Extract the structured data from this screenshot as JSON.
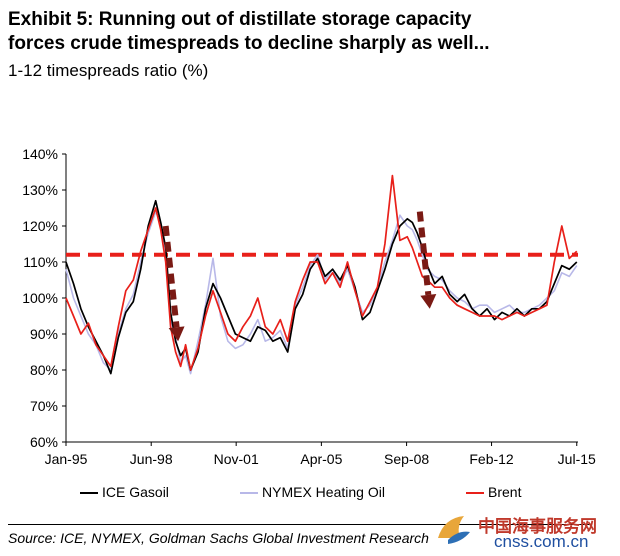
{
  "header": {
    "title_line1": "Exhibit 5: Running out of distillate storage capacity",
    "title_line2": "forces crude timespreads to decline sharply as well...",
    "subtitle": "1-12 timespreads ratio  (%)"
  },
  "source": "Source: ICE, NYMEX, Goldman Sachs Global Investment Research",
  "watermark": {
    "cn": "中国海事服务网",
    "en": "cnss.com.cn"
  },
  "colors": {
    "ice": "#000000",
    "nymex": "#b8b8e8",
    "brent": "#e8201a",
    "reference": "#e8201a",
    "arrow": "#7a1a14"
  },
  "chart_data": {
    "type": "line",
    "title": "Exhibit 5: Running out of distillate storage capacity forces crude timespreads to decline sharply as well...",
    "ylabel": "1-12 timespreads ratio (%)",
    "ylim": [
      60,
      140
    ],
    "yticks": [
      "60%",
      "70%",
      "80%",
      "90%",
      "100%",
      "110%",
      "120%",
      "130%",
      "140%"
    ],
    "yticks_values": [
      60,
      70,
      80,
      90,
      100,
      110,
      120,
      130,
      140
    ],
    "xlim": [
      1995.0,
      2015.55
    ],
    "xticks": [
      "Jan-95",
      "Jun-98",
      "Nov-01",
      "Apr-05",
      "Sep-08",
      "Feb-12",
      "Jul-15"
    ],
    "xticks_values": [
      1995.0,
      1998.42,
      2001.83,
      2005.25,
      2008.67,
      2012.08,
      2015.5
    ],
    "reference_line": {
      "y": 112,
      "style": "dashed"
    },
    "legend": [
      "ICE Gasoil",
      "NYMEX Heating Oil",
      "Brent"
    ],
    "legend_position": "bottom",
    "grid": false,
    "series": [
      {
        "name": "ICE Gasoil",
        "x": [
          1995.0,
          1995.3,
          1995.6,
          1995.9,
          1996.2,
          1996.5,
          1996.8,
          1997.1,
          1997.4,
          1997.7,
          1998.0,
          1998.3,
          1998.6,
          1998.8,
          1999.0,
          1999.2,
          1999.4,
          1999.6,
          1999.8,
          2000.0,
          2000.3,
          2000.6,
          2000.9,
          2001.2,
          2001.5,
          2001.8,
          2002.1,
          2002.4,
          2002.7,
          2003.0,
          2003.3,
          2003.6,
          2003.9,
          2004.2,
          2004.5,
          2004.8,
          2005.1,
          2005.4,
          2005.7,
          2006.0,
          2006.3,
          2006.6,
          2006.9,
          2007.2,
          2007.5,
          2007.8,
          2008.1,
          2008.4,
          2008.7,
          2008.9,
          2009.1,
          2009.3,
          2009.5,
          2009.8,
          2010.1,
          2010.4,
          2010.7,
          2011.0,
          2011.3,
          2011.6,
          2011.9,
          2012.2,
          2012.5,
          2012.8,
          2013.1,
          2013.4,
          2013.7,
          2014.0,
          2014.3,
          2014.6,
          2014.9,
          2015.2,
          2015.5
        ],
        "values": [
          110,
          104,
          97,
          92,
          88,
          84,
          79,
          89,
          96,
          99,
          108,
          120,
          127,
          121,
          114,
          96,
          88,
          84,
          86,
          80,
          85,
          97,
          104,
          100,
          95,
          90,
          89,
          88,
          92,
          91,
          88,
          89,
          85,
          97,
          101,
          108,
          111,
          106,
          108,
          105,
          109,
          103,
          94,
          96,
          102,
          108,
          115,
          120,
          122,
          121,
          118,
          114,
          109,
          104,
          106,
          101,
          99,
          101,
          97,
          95,
          97,
          94,
          96,
          95,
          97,
          95,
          97,
          97,
          99,
          104,
          109,
          108,
          110
        ]
      },
      {
        "name": "NYMEX Heating Oil",
        "x": [
          1995.0,
          1995.3,
          1995.6,
          1995.9,
          1996.2,
          1996.5,
          1996.8,
          1997.1,
          1997.4,
          1997.7,
          1998.0,
          1998.3,
          1998.6,
          1998.8,
          1999.0,
          1999.2,
          1999.4,
          1999.6,
          1999.8,
          2000.0,
          2000.3,
          2000.6,
          2000.9,
          2001.2,
          2001.5,
          2001.8,
          2002.1,
          2002.4,
          2002.7,
          2003.0,
          2003.3,
          2003.6,
          2003.9,
          2004.2,
          2004.5,
          2004.8,
          2005.1,
          2005.4,
          2005.7,
          2006.0,
          2006.3,
          2006.6,
          2006.9,
          2007.2,
          2007.5,
          2007.8,
          2008.1,
          2008.4,
          2008.7,
          2008.9,
          2009.1,
          2009.3,
          2009.5,
          2009.8,
          2010.1,
          2010.4,
          2010.7,
          2011.0,
          2011.3,
          2011.6,
          2011.9,
          2012.2,
          2012.5,
          2012.8,
          2013.1,
          2013.4,
          2013.7,
          2014.0,
          2014.3,
          2014.6,
          2014.9,
          2015.2,
          2015.5
        ],
        "values": [
          108,
          100,
          95,
          90,
          87,
          82,
          80,
          90,
          97,
          101,
          110,
          118,
          124,
          121,
          112,
          94,
          89,
          82,
          84,
          79,
          88,
          98,
          111,
          95,
          88,
          86,
          87,
          90,
          94,
          88,
          89,
          91,
          86,
          98,
          103,
          109,
          112,
          105,
          108,
          104,
          108,
          102,
          96,
          98,
          103,
          110,
          116,
          123,
          120,
          119,
          116,
          112,
          108,
          106,
          105,
          102,
          100,
          99,
          97,
          98,
          98,
          96,
          97,
          98,
          96,
          96,
          97,
          98,
          100,
          102,
          107,
          106,
          109
        ]
      },
      {
        "name": "Brent",
        "x": [
          1995.0,
          1995.3,
          1995.6,
          1995.9,
          1996.2,
          1996.5,
          1996.8,
          1997.1,
          1997.4,
          1997.7,
          1998.0,
          1998.3,
          1998.6,
          1998.8,
          1999.0,
          1999.2,
          1999.4,
          1999.6,
          1999.8,
          2000.0,
          2000.3,
          2000.6,
          2000.9,
          2001.2,
          2001.5,
          2001.8,
          2002.1,
          2002.4,
          2002.7,
          2003.0,
          2003.3,
          2003.6,
          2003.9,
          2004.2,
          2004.5,
          2004.8,
          2005.1,
          2005.4,
          2005.7,
          2006.0,
          2006.3,
          2006.6,
          2006.9,
          2007.2,
          2007.5,
          2007.8,
          2008.1,
          2008.4,
          2008.7,
          2008.9,
          2009.1,
          2009.3,
          2009.5,
          2009.8,
          2010.1,
          2010.4,
          2010.7,
          2011.0,
          2011.3,
          2011.6,
          2011.9,
          2012.2,
          2012.5,
          2012.8,
          2013.1,
          2013.4,
          2013.7,
          2014.0,
          2014.3,
          2014.6,
          2014.9,
          2015.2,
          2015.5
        ],
        "values": [
          100,
          95,
          90,
          93,
          87,
          84,
          81,
          92,
          102,
          105,
          113,
          119,
          125,
          119,
          110,
          92,
          85,
          81,
          87,
          80,
          86,
          95,
          102,
          96,
          90,
          88,
          92,
          95,
          100,
          92,
          90,
          94,
          88,
          99,
          105,
          110,
          110,
          104,
          107,
          103,
          110,
          102,
          95,
          99,
          103,
          115,
          134,
          116,
          117,
          114,
          110,
          106,
          105,
          103,
          103,
          100,
          98,
          97,
          96,
          95,
          95,
          95,
          94,
          95,
          96,
          95,
          96,
          97,
          98,
          110,
          120,
          111,
          113
        ]
      }
    ],
    "annotations": [
      {
        "type": "arrow",
        "direction": "down",
        "from": [
          1999.0,
          120
        ],
        "to": [
          1999.5,
          88
        ],
        "style": "dashed"
      },
      {
        "type": "arrow",
        "direction": "down",
        "from": [
          2009.2,
          124
        ],
        "to": [
          2009.6,
          97
        ],
        "style": "dashed"
      }
    ]
  }
}
